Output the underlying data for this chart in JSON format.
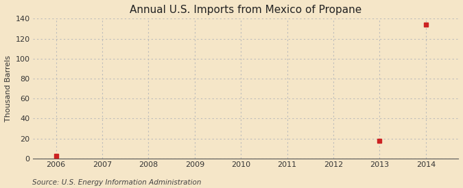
{
  "title": "Annual U.S. Imports from Mexico of Propane",
  "ylabel": "Thousand Barrels",
  "source_text": "Source: U.S. Energy Information Administration",
  "background_color": "#f5e6c8",
  "plot_bg_color": "#f5e6c8",
  "data_points": {
    "2006": 3,
    "2013": 18,
    "2014": 134
  },
  "xlim": [
    2005.5,
    2014.7
  ],
  "ylim": [
    0,
    140
  ],
  "yticks": [
    0,
    20,
    40,
    60,
    80,
    100,
    120,
    140
  ],
  "xticks": [
    2006,
    2007,
    2008,
    2009,
    2010,
    2011,
    2012,
    2013,
    2014
  ],
  "marker_color": "#cc2222",
  "marker_size": 4,
  "grid_color": "#bbbbbb",
  "title_fontsize": 11,
  "axis_fontsize": 8,
  "source_fontsize": 7.5
}
